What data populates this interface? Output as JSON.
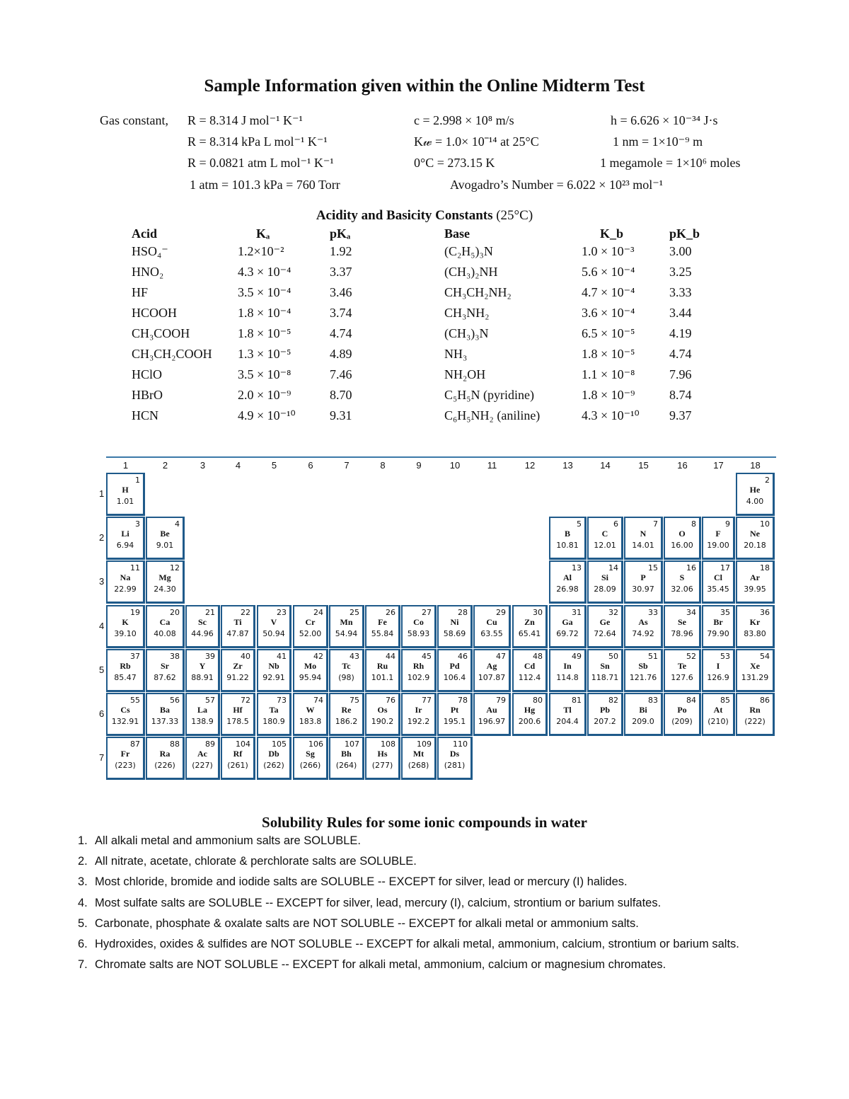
{
  "title": "Sample Information given within the Online Midterm Test",
  "constants": {
    "gas_label": "Gas constant,",
    "r1": "R = 8.314 J mol⁻¹ K⁻¹",
    "r2": "R = 8.314 kPa L mol⁻¹ K⁻¹",
    "r3": "R = 0.0821 atm L mol⁻¹ K⁻¹",
    "atm": "1 atm = 101.3 kPa = 760 Torr",
    "c": "c = 2.998 × 10⁸ m/s",
    "kw": "K𝓌 = 1.0× 10⁻¹⁴ at 25°C",
    "zero": "0°C = 273.15 K",
    "avogadro": "Avogadro’s Number = 6.022 × 10²³ mol⁻¹",
    "h": "h = 6.626 × 10⁻³⁴ J·s",
    "nm": "1 nm = 1×10⁻⁹ m",
    "megamole": "1 megamole = 1×10⁶ moles"
  },
  "acid_table": {
    "title": "Acidity and Basicity Constants",
    "title_suffix": " (25°C)",
    "headers": [
      "Acid",
      "Kₐ",
      "pKₐ",
      "Base",
      "K_b",
      "pK_b"
    ],
    "rows": [
      [
        "HSO₄⁻",
        "1.2×10⁻²",
        "1.92",
        "(C₂H₅)₃N",
        "1.0 × 10⁻³",
        "3.00"
      ],
      [
        "HNO₂",
        "4.3 × 10⁻⁴",
        "3.37",
        "(CH₃)₂NH",
        "5.6 × 10⁻⁴",
        "3.25"
      ],
      [
        "HF",
        "3.5 × 10⁻⁴",
        "3.46",
        "CH₃CH₂NH₂",
        "4.7 × 10⁻⁴",
        "3.33"
      ],
      [
        "HCOOH",
        "1.8 × 10⁻⁴",
        "3.74",
        "CH₃NH₂",
        "3.6 × 10⁻⁴",
        "3.44"
      ],
      [
        "CH₃COOH",
        "1.8 × 10⁻⁵",
        "4.74",
        "(CH₃)₃N",
        "6.5 × 10⁻⁵",
        "4.19"
      ],
      [
        "CH₃CH₂COOH",
        "1.3 × 10⁻⁵",
        "4.89",
        "NH₃",
        "1.8 × 10⁻⁵",
        "4.74"
      ],
      [
        "HClO",
        "3.5 × 10⁻⁸",
        "7.46",
        "NH₂OH",
        "1.1 × 10⁻⁸",
        "7.96"
      ],
      [
        "HBrO",
        "2.0 × 10⁻⁹",
        "8.70",
        "C₅H₅N (pyridine)",
        "1.8 × 10⁻⁹",
        "8.74"
      ],
      [
        "HCN",
        "4.9 × 10⁻¹⁰",
        "9.31",
        "C₆H₅NH₂ (aniline)",
        "4.3 × 10⁻¹⁰",
        "9.37"
      ]
    ]
  },
  "periodic_table": {
    "border_color": "#1f5a8a",
    "groups": [
      "1",
      "2",
      "3",
      "4",
      "5",
      "6",
      "7",
      "8",
      "9",
      "10",
      "11",
      "12",
      "13",
      "14",
      "15",
      "16",
      "17",
      "18"
    ],
    "periods": [
      "1",
      "2",
      "3",
      "4",
      "5",
      "6",
      "7"
    ],
    "elements": [
      [
        "H",
        "1",
        "1.01",
        1,
        1
      ],
      [
        "He",
        "2",
        "4.00",
        1,
        18
      ],
      [
        "Li",
        "3",
        "6.94",
        2,
        1
      ],
      [
        "Be",
        "4",
        "9.01",
        2,
        2
      ],
      [
        "B",
        "5",
        "10.81",
        2,
        13
      ],
      [
        "C",
        "6",
        "12.01",
        2,
        14
      ],
      [
        "N",
        "7",
        "14.01",
        2,
        15
      ],
      [
        "O",
        "8",
        "16.00",
        2,
        16
      ],
      [
        "F",
        "9",
        "19.00",
        2,
        17
      ],
      [
        "Ne",
        "10",
        "20.18",
        2,
        18
      ],
      [
        "Na",
        "11",
        "22.99",
        3,
        1
      ],
      [
        "Mg",
        "12",
        "24.30",
        3,
        2
      ],
      [
        "Al",
        "13",
        "26.98",
        3,
        13
      ],
      [
        "Si",
        "14",
        "28.09",
        3,
        14
      ],
      [
        "P",
        "15",
        "30.97",
        3,
        15
      ],
      [
        "S",
        "16",
        "32.06",
        3,
        16
      ],
      [
        "Cl",
        "17",
        "35.45",
        3,
        17
      ],
      [
        "Ar",
        "18",
        "39.95",
        3,
        18
      ],
      [
        "K",
        "19",
        "39.10",
        4,
        1
      ],
      [
        "Ca",
        "20",
        "40.08",
        4,
        2
      ],
      [
        "Sc",
        "21",
        "44.96",
        4,
        3
      ],
      [
        "Ti",
        "22",
        "47.87",
        4,
        4
      ],
      [
        "V",
        "23",
        "50.94",
        4,
        5
      ],
      [
        "Cr",
        "24",
        "52.00",
        4,
        6
      ],
      [
        "Mn",
        "25",
        "54.94",
        4,
        7
      ],
      [
        "Fe",
        "26",
        "55.84",
        4,
        8
      ],
      [
        "Co",
        "27",
        "58.93",
        4,
        9
      ],
      [
        "Ni",
        "28",
        "58.69",
        4,
        10
      ],
      [
        "Cu",
        "29",
        "63.55",
        4,
        11
      ],
      [
        "Zn",
        "30",
        "65.41",
        4,
        12
      ],
      [
        "Ga",
        "31",
        "69.72",
        4,
        13
      ],
      [
        "Ge",
        "32",
        "72.64",
        4,
        14
      ],
      [
        "As",
        "33",
        "74.92",
        4,
        15
      ],
      [
        "Se",
        "34",
        "78.96",
        4,
        16
      ],
      [
        "Br",
        "35",
        "79.90",
        4,
        17
      ],
      [
        "Kr",
        "36",
        "83.80",
        4,
        18
      ],
      [
        "Rb",
        "37",
        "85.47",
        5,
        1
      ],
      [
        "Sr",
        "38",
        "87.62",
        5,
        2
      ],
      [
        "Y",
        "39",
        "88.91",
        5,
        3
      ],
      [
        "Zr",
        "40",
        "91.22",
        5,
        4
      ],
      [
        "Nb",
        "41",
        "92.91",
        5,
        5
      ],
      [
        "Mo",
        "42",
        "95.94",
        5,
        6
      ],
      [
        "Tc",
        "43",
        "(98)",
        5,
        7
      ],
      [
        "Ru",
        "44",
        "101.1",
        5,
        8
      ],
      [
        "Rh",
        "45",
        "102.9",
        5,
        9
      ],
      [
        "Pd",
        "46",
        "106.4",
        5,
        10
      ],
      [
        "Ag",
        "47",
        "107.87",
        5,
        11
      ],
      [
        "Cd",
        "48",
        "112.4",
        5,
        12
      ],
      [
        "In",
        "49",
        "114.8",
        5,
        13
      ],
      [
        "Sn",
        "50",
        "118.71",
        5,
        14
      ],
      [
        "Sb",
        "51",
        "121.76",
        5,
        15
      ],
      [
        "Te",
        "52",
        "127.6",
        5,
        16
      ],
      [
        "I",
        "53",
        "126.9",
        5,
        17
      ],
      [
        "Xe",
        "54",
        "131.29",
        5,
        18
      ],
      [
        "Cs",
        "55",
        "132.91",
        6,
        1
      ],
      [
        "Ba",
        "56",
        "137.33",
        6,
        2
      ],
      [
        "La",
        "57",
        "138.9",
        6,
        3
      ],
      [
        "Hf",
        "72",
        "178.5",
        6,
        4
      ],
      [
        "Ta",
        "73",
        "180.9",
        6,
        5
      ],
      [
        "W",
        "74",
        "183.8",
        6,
        6
      ],
      [
        "Re",
        "75",
        "186.2",
        6,
        7
      ],
      [
        "Os",
        "76",
        "190.2",
        6,
        8
      ],
      [
        "Ir",
        "77",
        "192.2",
        6,
        9
      ],
      [
        "Pt",
        "78",
        "195.1",
        6,
        10
      ],
      [
        "Au",
        "79",
        "196.97",
        6,
        11
      ],
      [
        "Hg",
        "80",
        "200.6",
        6,
        12
      ],
      [
        "Tl",
        "81",
        "204.4",
        6,
        13
      ],
      [
        "Pb",
        "82",
        "207.2",
        6,
        14
      ],
      [
        "Bi",
        "83",
        "209.0",
        6,
        15
      ],
      [
        "Po",
        "84",
        "(209)",
        6,
        16
      ],
      [
        "At",
        "85",
        "(210)",
        6,
        17
      ],
      [
        "Rn",
        "86",
        "(222)",
        6,
        18
      ],
      [
        "Fr",
        "87",
        "(223)",
        7,
        1
      ],
      [
        "Ra",
        "88",
        "(226)",
        7,
        2
      ],
      [
        "Ac",
        "89",
        "(227)",
        7,
        3
      ],
      [
        "Rf",
        "104",
        "(261)",
        7,
        4
      ],
      [
        "Db",
        "105",
        "(262)",
        7,
        5
      ],
      [
        "Sg",
        "106",
        "(266)",
        7,
        6
      ],
      [
        "Bh",
        "107",
        "(264)",
        7,
        7
      ],
      [
        "Hs",
        "108",
        "(277)",
        7,
        8
      ],
      [
        "Mt",
        "109",
        "(268)",
        7,
        9
      ],
      [
        "Ds",
        "110",
        "(281)",
        7,
        10
      ]
    ]
  },
  "solubility": {
    "title": "Solubility Rules for some ionic compounds in water",
    "rules": [
      "All alkali metal and ammonium salts are SOLUBLE.",
      "All nitrate, acetate, chlorate & perchlorate salts are SOLUBLE.",
      "Most chloride, bromide and iodide salts are SOLUBLE -- EXCEPT for silver, lead or mercury (I) halides.",
      "Most sulfate salts are SOLUBLE -- EXCEPT for silver, lead, mercury (I), calcium, strontium or barium sulfates.",
      "Carbonate, phosphate & oxalate salts are NOT SOLUBLE -- EXCEPT for alkali metal or ammonium salts.",
      "Hydroxides, oxides & sulfides are NOT SOLUBLE -- EXCEPT for alkali metal, ammonium, calcium, strontium or barium salts.",
      "Chromate salts are NOT SOLUBLE -- EXCEPT for alkali metal, ammonium, calcium or magnesium chromates."
    ]
  }
}
